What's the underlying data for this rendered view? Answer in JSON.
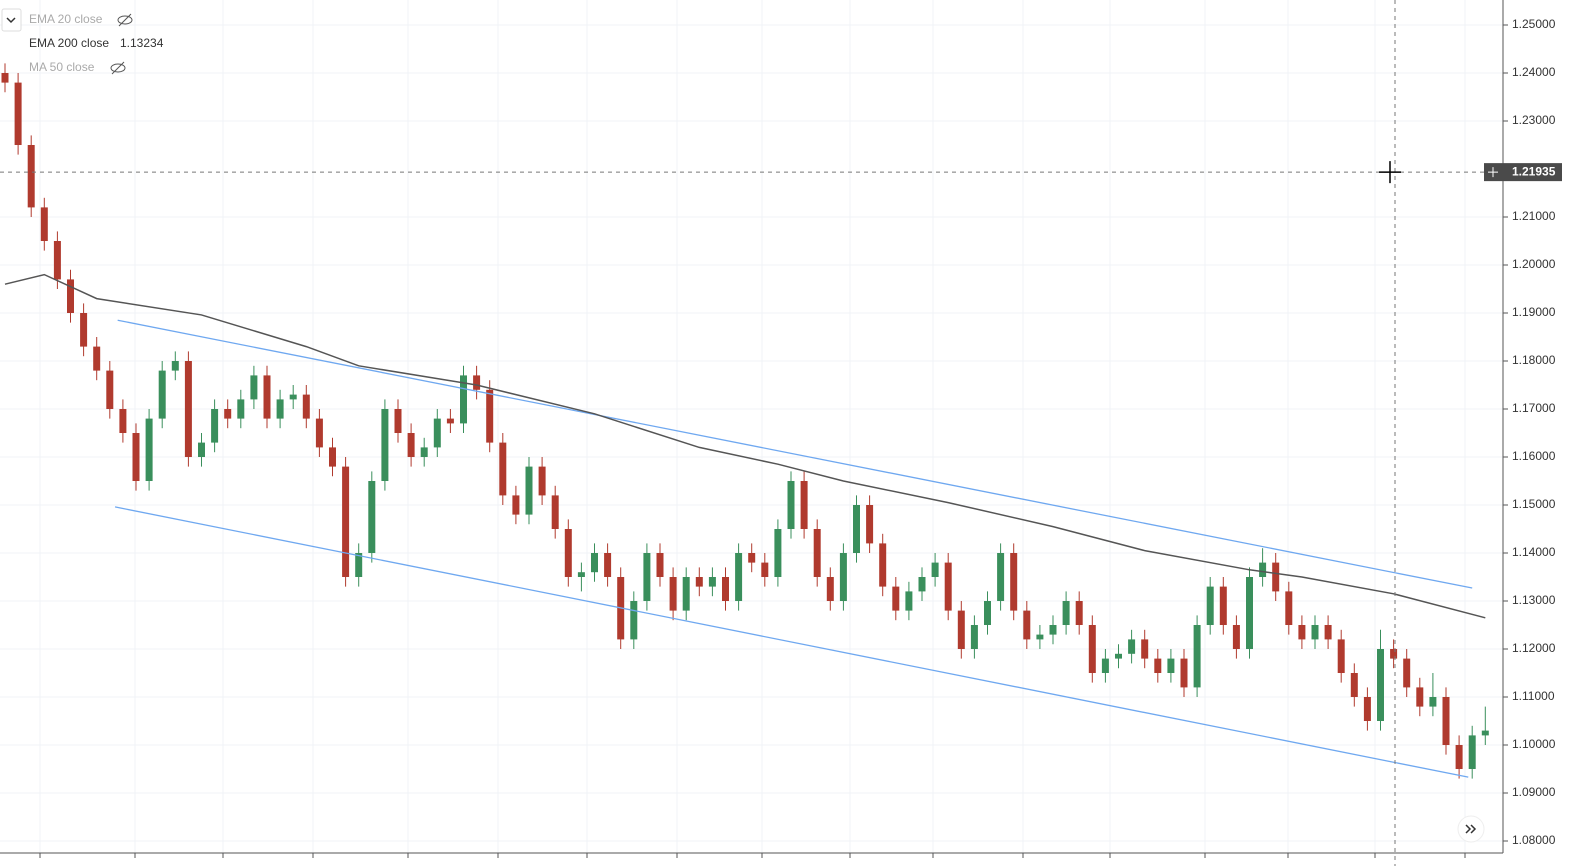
{
  "chart_data": {
    "type": "candlestick",
    "legend": [
      {
        "name": "EMA 20 close",
        "hidden": true
      },
      {
        "name": "EMA 200 close",
        "value": 1.13234,
        "hidden": false
      },
      {
        "name": "MA 50 close",
        "hidden": true
      }
    ],
    "up_color": "#3a8f5c",
    "down_color": "#b03a2e",
    "ylim": [
      1.25521,
      1.0775
    ],
    "yticks": [
      {
        "value": 1.25,
        "label": "1.25000"
      },
      {
        "value": 1.24,
        "label": "1.24000"
      },
      {
        "value": 1.23,
        "label": "1.23000"
      },
      {
        "value": 1.21,
        "label": "1.21000"
      },
      {
        "value": 1.2,
        "label": "1.20000"
      },
      {
        "value": 1.19,
        "label": "1.19000"
      },
      {
        "value": 1.18,
        "label": "1.18000"
      },
      {
        "value": 1.17,
        "label": "1.17000"
      },
      {
        "value": 1.16,
        "label": "1.16000"
      },
      {
        "value": 1.15,
        "label": "1.15000"
      },
      {
        "value": 1.14,
        "label": "1.14000"
      },
      {
        "value": 1.13,
        "label": "1.13000"
      },
      {
        "value": 1.12,
        "label": "1.12000"
      },
      {
        "value": 1.11,
        "label": "1.11000"
      },
      {
        "value": 1.1,
        "label": "1.10000"
      },
      {
        "value": 1.09,
        "label": "1.09000"
      },
      {
        "value": 1.08,
        "label": "1.08000"
      }
    ],
    "grid": true,
    "crosshair": 1.21935,
    "candles": [
      [
        1.24,
        1.242,
        1.236,
        1.238
      ],
      [
        1.238,
        1.24,
        1.223,
        1.225
      ],
      [
        1.225,
        1.227,
        1.21,
        1.212
      ],
      [
        1.212,
        1.214,
        1.203,
        1.205
      ],
      [
        1.205,
        1.207,
        1.195,
        1.197
      ],
      [
        1.197,
        1.199,
        1.188,
        1.19
      ],
      [
        1.19,
        1.192,
        1.181,
        1.183
      ],
      [
        1.183,
        1.185,
        1.176,
        1.178
      ],
      [
        1.178,
        1.18,
        1.168,
        1.17
      ],
      [
        1.17,
        1.172,
        1.163,
        1.165
      ],
      [
        1.165,
        1.167,
        1.153,
        1.155
      ],
      [
        1.155,
        1.17,
        1.153,
        1.168
      ],
      [
        1.168,
        1.18,
        1.166,
        1.178
      ],
      [
        1.178,
        1.182,
        1.176,
        1.18
      ],
      [
        1.18,
        1.182,
        1.158,
        1.16
      ],
      [
        1.16,
        1.165,
        1.158,
        1.163
      ],
      [
        1.163,
        1.172,
        1.161,
        1.17
      ],
      [
        1.17,
        1.172,
        1.166,
        1.168
      ],
      [
        1.168,
        1.174,
        1.166,
        1.172
      ],
      [
        1.172,
        1.179,
        1.17,
        1.177
      ],
      [
        1.177,
        1.179,
        1.166,
        1.168
      ],
      [
        1.168,
        1.174,
        1.166,
        1.172
      ],
      [
        1.172,
        1.175,
        1.17,
        1.173
      ],
      [
        1.173,
        1.175,
        1.166,
        1.168
      ],
      [
        1.168,
        1.17,
        1.16,
        1.162
      ],
      [
        1.162,
        1.164,
        1.156,
        1.158
      ],
      [
        1.158,
        1.16,
        1.133,
        1.135
      ],
      [
        1.135,
        1.142,
        1.133,
        1.14
      ],
      [
        1.14,
        1.157,
        1.138,
        1.155
      ],
      [
        1.155,
        1.172,
        1.153,
        1.17
      ],
      [
        1.17,
        1.172,
        1.163,
        1.165
      ],
      [
        1.165,
        1.167,
        1.158,
        1.16
      ],
      [
        1.16,
        1.164,
        1.158,
        1.162
      ],
      [
        1.162,
        1.17,
        1.16,
        1.168
      ],
      [
        1.168,
        1.17,
        1.165,
        1.167
      ],
      [
        1.167,
        1.179,
        1.165,
        1.177
      ],
      [
        1.177,
        1.179,
        1.172,
        1.174
      ],
      [
        1.174,
        1.176,
        1.161,
        1.163
      ],
      [
        1.163,
        1.165,
        1.15,
        1.152
      ],
      [
        1.152,
        1.154,
        1.146,
        1.148
      ],
      [
        1.148,
        1.16,
        1.146,
        1.158
      ],
      [
        1.158,
        1.16,
        1.15,
        1.152
      ],
      [
        1.152,
        1.154,
        1.143,
        1.145
      ],
      [
        1.145,
        1.147,
        1.133,
        1.135
      ],
      [
        1.135,
        1.138,
        1.132,
        1.136
      ],
      [
        1.136,
        1.142,
        1.134,
        1.14
      ],
      [
        1.14,
        1.142,
        1.133,
        1.135
      ],
      [
        1.135,
        1.137,
        1.12,
        1.122
      ],
      [
        1.122,
        1.132,
        1.12,
        1.13
      ],
      [
        1.13,
        1.142,
        1.128,
        1.14
      ],
      [
        1.14,
        1.142,
        1.133,
        1.135
      ],
      [
        1.135,
        1.137,
        1.126,
        1.128
      ],
      [
        1.128,
        1.137,
        1.126,
        1.135
      ],
      [
        1.135,
        1.137,
        1.131,
        1.133
      ],
      [
        1.133,
        1.137,
        1.131,
        1.135
      ],
      [
        1.135,
        1.137,
        1.128,
        1.13
      ],
      [
        1.13,
        1.142,
        1.128,
        1.14
      ],
      [
        1.14,
        1.142,
        1.136,
        1.138
      ],
      [
        1.138,
        1.14,
        1.133,
        1.135
      ],
      [
        1.135,
        1.147,
        1.133,
        1.145
      ],
      [
        1.145,
        1.157,
        1.143,
        1.155
      ],
      [
        1.155,
        1.157,
        1.143,
        1.145
      ],
      [
        1.145,
        1.147,
        1.133,
        1.135
      ],
      [
        1.135,
        1.137,
        1.128,
        1.13
      ],
      [
        1.13,
        1.142,
        1.128,
        1.14
      ],
      [
        1.14,
        1.152,
        1.138,
        1.15
      ],
      [
        1.15,
        1.152,
        1.14,
        1.142
      ],
      [
        1.142,
        1.144,
        1.131,
        1.133
      ],
      [
        1.133,
        1.135,
        1.126,
        1.128
      ],
      [
        1.128,
        1.134,
        1.126,
        1.132
      ],
      [
        1.132,
        1.137,
        1.13,
        1.135
      ],
      [
        1.135,
        1.14,
        1.133,
        1.138
      ],
      [
        1.138,
        1.14,
        1.126,
        1.128
      ],
      [
        1.128,
        1.13,
        1.118,
        1.12
      ],
      [
        1.12,
        1.127,
        1.118,
        1.125
      ],
      [
        1.125,
        1.132,
        1.123,
        1.13
      ],
      [
        1.13,
        1.142,
        1.128,
        1.14
      ],
      [
        1.14,
        1.142,
        1.126,
        1.128
      ],
      [
        1.128,
        1.13,
        1.12,
        1.122
      ],
      [
        1.122,
        1.125,
        1.12,
        1.123
      ],
      [
        1.123,
        1.127,
        1.121,
        1.125
      ],
      [
        1.125,
        1.132,
        1.123,
        1.13
      ],
      [
        1.13,
        1.132,
        1.123,
        1.125
      ],
      [
        1.125,
        1.127,
        1.113,
        1.115
      ],
      [
        1.115,
        1.12,
        1.113,
        1.118
      ],
      [
        1.118,
        1.121,
        1.116,
        1.119
      ],
      [
        1.119,
        1.124,
        1.117,
        1.122
      ],
      [
        1.122,
        1.124,
        1.116,
        1.118
      ],
      [
        1.118,
        1.12,
        1.113,
        1.115
      ],
      [
        1.115,
        1.12,
        1.113,
        1.118
      ],
      [
        1.118,
        1.12,
        1.11,
        1.112
      ],
      [
        1.112,
        1.127,
        1.11,
        1.125
      ],
      [
        1.125,
        1.135,
        1.123,
        1.133
      ],
      [
        1.133,
        1.135,
        1.123,
        1.125
      ],
      [
        1.125,
        1.127,
        1.118,
        1.12
      ],
      [
        1.12,
        1.137,
        1.118,
        1.135
      ],
      [
        1.135,
        1.141,
        1.133,
        1.138
      ],
      [
        1.138,
        1.14,
        1.13,
        1.132
      ],
      [
        1.132,
        1.134,
        1.123,
        1.125
      ],
      [
        1.125,
        1.127,
        1.12,
        1.122
      ],
      [
        1.122,
        1.127,
        1.12,
        1.125
      ],
      [
        1.125,
        1.127,
        1.12,
        1.122
      ],
      [
        1.122,
        1.124,
        1.113,
        1.115
      ],
      [
        1.115,
        1.117,
        1.108,
        1.11
      ],
      [
        1.11,
        1.112,
        1.103,
        1.105
      ],
      [
        1.105,
        1.124,
        1.103,
        1.12
      ],
      [
        1.12,
        1.122,
        1.116,
        1.118
      ],
      [
        1.118,
        1.12,
        1.11,
        1.112
      ],
      [
        1.112,
        1.114,
        1.106,
        1.108
      ],
      [
        1.108,
        1.115,
        1.106,
        1.11
      ],
      [
        1.11,
        1.112,
        1.098,
        1.1
      ],
      [
        1.1,
        1.102,
        1.093,
        1.095
      ],
      [
        1.095,
        1.104,
        1.093,
        1.102
      ],
      [
        1.102,
        1.108,
        1.1,
        1.103
      ]
    ],
    "ema": {
      "color": "#555555",
      "x": [
        0,
        3,
        7,
        15,
        23,
        27,
        36,
        45,
        53,
        59,
        64,
        72,
        80,
        87,
        95,
        99,
        106,
        113
      ],
      "values": [
        1.196,
        1.198,
        1.193,
        1.1896,
        1.183,
        1.179,
        1.175,
        1.169,
        1.162,
        1.1585,
        1.155,
        1.1505,
        1.1455,
        1.1405,
        1.1365,
        1.135,
        1.1315,
        1.1265
      ]
    },
    "trendlines": [
      {
        "color": "#6fa8f0",
        "x": [
          8.6,
          112
        ],
        "values": [
          1.1885,
          1.1327
        ]
      },
      {
        "color": "#6fa8f0",
        "x": [
          8.4,
          111.7
        ],
        "values": [
          1.1496,
          1.0933
        ]
      }
    ]
  }
}
